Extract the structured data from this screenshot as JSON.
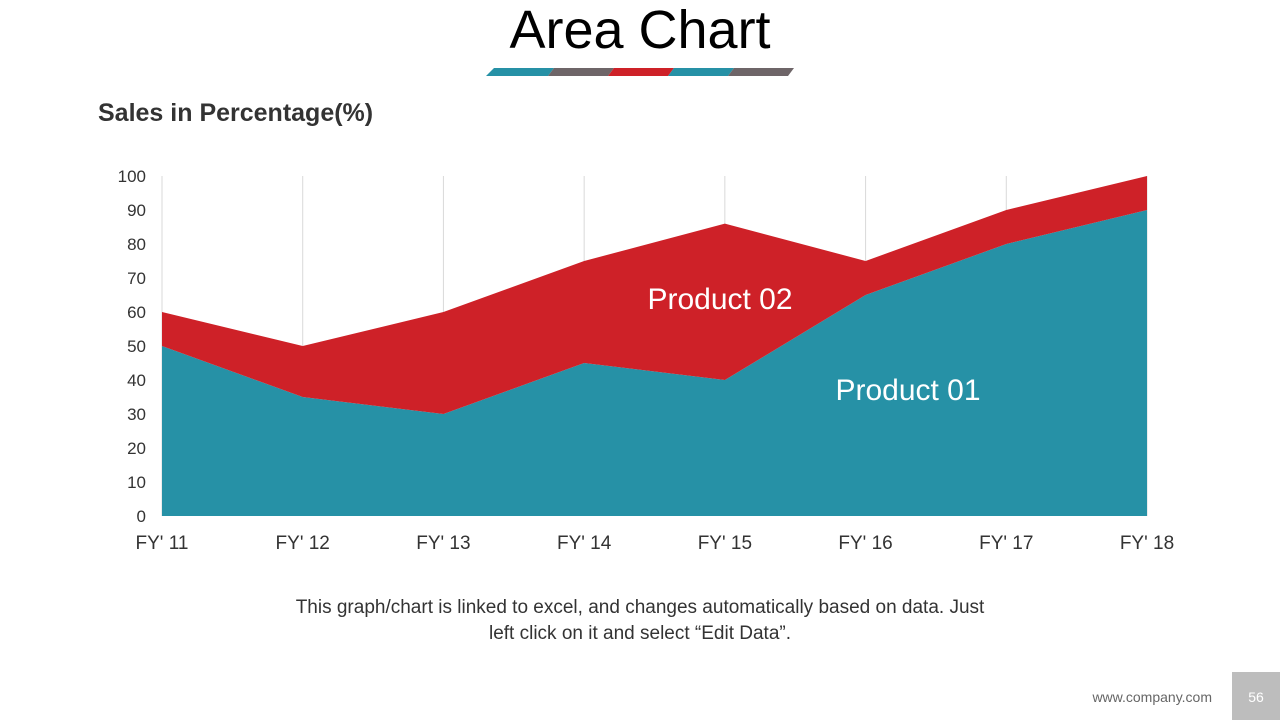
{
  "slide": {
    "title": "Area Chart",
    "subtitle": "Sales in Percentage(%)",
    "note": "This graph/chart is linked to excel, and changes automatically based on data. Just left click on it and select “Edit Data”.",
    "footer_url": "www.company.com",
    "page_number": "56"
  },
  "colors": {
    "teal": "#2691a6",
    "red": "#ce2128",
    "gray": "#6e6568",
    "grid": "#d9d9d9"
  },
  "chart_data": {
    "type": "area",
    "stacked": true,
    "categories": [
      "FY' 11",
      "FY' 12",
      "FY' 13",
      "FY' 14",
      "FY' 15",
      "FY' 16",
      "FY' 17",
      "FY' 18"
    ],
    "series": [
      {
        "name": "Product 01",
        "values": [
          50,
          35,
          30,
          45,
          40,
          65,
          80,
          90
        ],
        "color": "#2691a6"
      },
      {
        "name": "Product 02",
        "values": [
          10,
          15,
          30,
          30,
          46,
          10,
          10,
          10
        ],
        "color": "#ce2128"
      }
    ],
    "ylim": [
      0,
      100
    ],
    "yticks": [
      0,
      10,
      20,
      30,
      40,
      50,
      60,
      70,
      80,
      90,
      100
    ],
    "grid": "vertical",
    "legend": "none",
    "series_labels_in_plot": true
  }
}
